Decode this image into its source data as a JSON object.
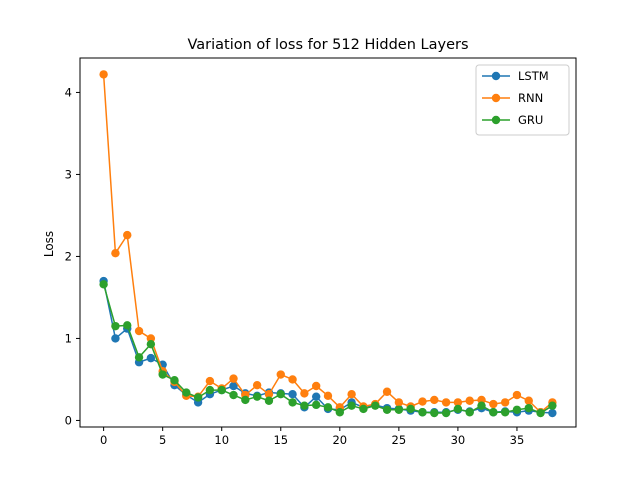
{
  "chart_data": {
    "type": "line",
    "title": "Variation of loss for 512 Hidden Layers",
    "xlabel": "",
    "ylabel": "Loss",
    "xlim": [
      -2,
      40
    ],
    "ylim": [
      -0.08,
      4.42
    ],
    "xticks": [
      0,
      5,
      10,
      15,
      20,
      25,
      30,
      35
    ],
    "yticks": [
      0,
      1,
      2,
      3,
      4
    ],
    "grid": false,
    "legend_position": "top-right",
    "x": [
      0,
      1,
      2,
      3,
      4,
      5,
      6,
      7,
      8,
      9,
      10,
      11,
      12,
      13,
      14,
      15,
      16,
      17,
      18,
      19,
      20,
      21,
      22,
      23,
      24,
      25,
      26,
      27,
      28,
      29,
      30,
      31,
      32,
      33,
      34,
      35,
      36,
      37,
      38
    ],
    "series": [
      {
        "name": "LSTM",
        "color": "#1f77b4",
        "values": [
          1.7,
          1.0,
          1.12,
          0.71,
          0.76,
          0.68,
          0.43,
          0.31,
          0.22,
          0.32,
          0.37,
          0.42,
          0.33,
          0.3,
          0.34,
          0.33,
          0.32,
          0.16,
          0.29,
          0.14,
          0.13,
          0.22,
          0.16,
          0.19,
          0.15,
          0.14,
          0.12,
          0.1,
          0.1,
          0.1,
          0.13,
          0.11,
          0.15,
          0.1,
          0.11,
          0.1,
          0.12,
          0.1,
          0.09
        ]
      },
      {
        "name": "RNN",
        "color": "#ff7f0e",
        "values": [
          4.22,
          2.04,
          2.26,
          1.09,
          1.0,
          0.6,
          0.47,
          0.3,
          0.29,
          0.48,
          0.39,
          0.51,
          0.31,
          0.43,
          0.32,
          0.56,
          0.5,
          0.33,
          0.42,
          0.3,
          0.16,
          0.32,
          0.17,
          0.2,
          0.35,
          0.22,
          0.17,
          0.23,
          0.25,
          0.22,
          0.22,
          0.24,
          0.25,
          0.2,
          0.22,
          0.31,
          0.24,
          0.1,
          0.22
        ]
      },
      {
        "name": "GRU",
        "color": "#2ca02c",
        "values": [
          1.66,
          1.15,
          1.16,
          0.77,
          0.93,
          0.56,
          0.49,
          0.34,
          0.28,
          0.37,
          0.37,
          0.31,
          0.25,
          0.29,
          0.24,
          0.32,
          0.22,
          0.18,
          0.19,
          0.16,
          0.1,
          0.18,
          0.14,
          0.18,
          0.13,
          0.13,
          0.14,
          0.1,
          0.09,
          0.09,
          0.14,
          0.1,
          0.18,
          0.1,
          0.1,
          0.13,
          0.15,
          0.09,
          0.18
        ]
      }
    ]
  }
}
